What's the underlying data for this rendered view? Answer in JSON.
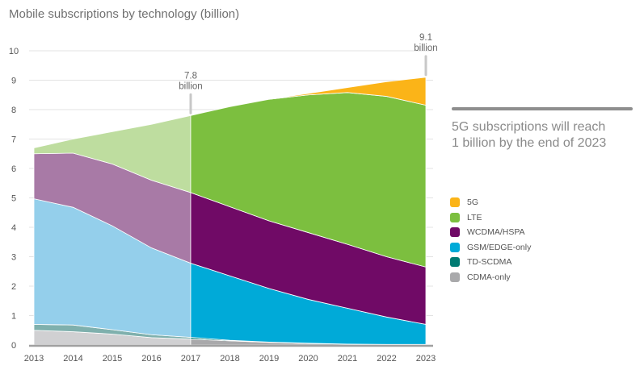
{
  "chart_data": {
    "type": "area",
    "title": "Mobile subscriptions by technology (billion)",
    "xlabel": "",
    "ylabel": "",
    "x": [
      2013,
      2014,
      2015,
      2016,
      2017,
      2018,
      2019,
      2020,
      2021,
      2022,
      2023
    ],
    "xticks": [
      "2013",
      "2014",
      "2015",
      "2016",
      "2017",
      "2018",
      "2019",
      "2020",
      "2021",
      "2022",
      "2023"
    ],
    "yticks": [
      "0",
      "1",
      "2",
      "3",
      "4",
      "5",
      "6",
      "7",
      "8",
      "9",
      "10"
    ],
    "ylim": [
      0,
      10
    ],
    "grid": true,
    "stacked": true,
    "historical_until": 2017,
    "legend_position": "right",
    "series": [
      {
        "name": "CDMA-only",
        "color": "#a9a9ab",
        "light_color": "#d0d0d2",
        "values": [
          0.5,
          0.45,
          0.37,
          0.25,
          0.2,
          0.14,
          0.09,
          0.05,
          0.03,
          0.02,
          0.02
        ]
      },
      {
        "name": "TD-SCDMA",
        "color": "#007b73",
        "light_color": "#7fb0ad",
        "values": [
          0.2,
          0.23,
          0.15,
          0.1,
          0.06,
          0.02,
          0.01,
          0.01,
          0.0,
          0.0,
          0.0
        ]
      },
      {
        "name": "GSM/EDGE-only",
        "color": "#00aad8",
        "light_color": "#94cfeb",
        "values": [
          4.27,
          4.0,
          3.53,
          2.95,
          2.52,
          2.19,
          1.82,
          1.49,
          1.22,
          0.93,
          0.68
        ]
      },
      {
        "name": "WCDMA/HSPA",
        "color": "#700a66",
        "light_color": "#a87aa6",
        "values": [
          1.53,
          1.84,
          2.1,
          2.3,
          2.4,
          2.35,
          2.3,
          2.27,
          2.17,
          2.05,
          1.95
        ]
      },
      {
        "name": "LTE",
        "color": "#7cbf3f",
        "light_color": "#bedd9f",
        "values": [
          0.2,
          0.48,
          1.1,
          1.9,
          2.62,
          3.4,
          4.13,
          4.68,
          5.16,
          5.45,
          5.5
        ]
      },
      {
        "name": "5G",
        "color": "#fbb418",
        "light_color": "#fbd68a",
        "values": [
          0,
          0,
          0,
          0,
          0,
          0,
          0,
          0.05,
          0.17,
          0.5,
          0.95
        ]
      }
    ],
    "annotations": [
      {
        "x": 2017,
        "value_label": "7.8",
        "unit_label": "billion"
      },
      {
        "x": 2023,
        "value_label": "9.1",
        "unit_label": "billion"
      }
    ]
  },
  "callout": {
    "line1": "5G subscriptions will reach",
    "line2": "1 billion by the end of 2023"
  },
  "legend": [
    {
      "label": "5G",
      "color": "#fbb418"
    },
    {
      "label": "LTE",
      "color": "#7cbf3f"
    },
    {
      "label": "WCDMA/HSPA",
      "color": "#700a66"
    },
    {
      "label": "GSM/EDGE-only",
      "color": "#00aad8"
    },
    {
      "label": "TD-SCDMA",
      "color": "#007b73"
    },
    {
      "label": "CDMA-only",
      "color": "#a9a9ab"
    }
  ]
}
